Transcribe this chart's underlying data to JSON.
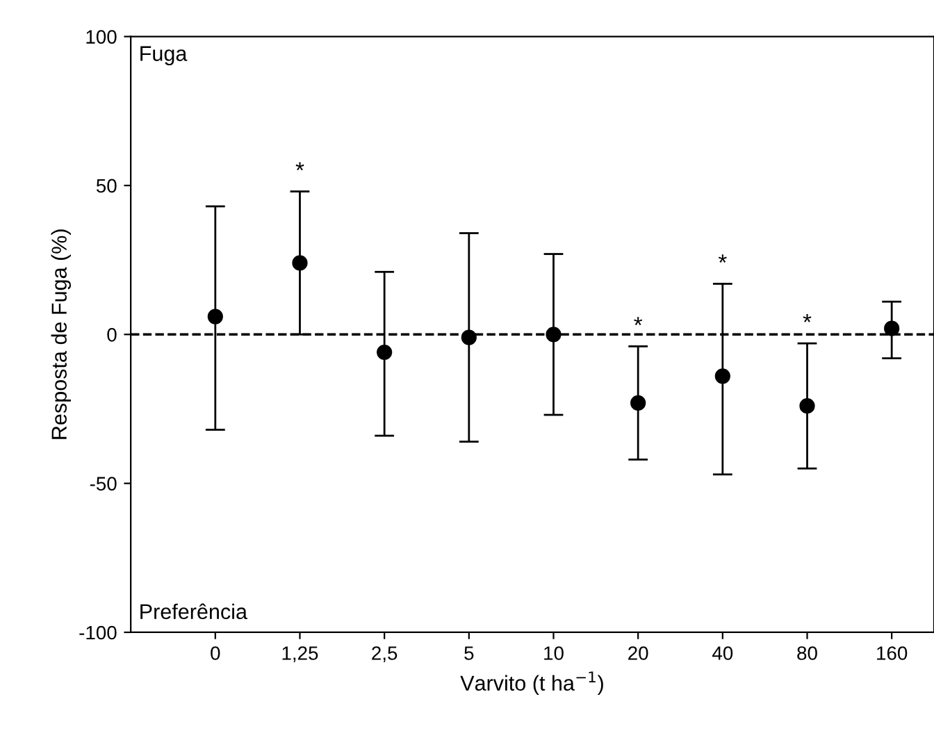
{
  "chart_data": {
    "type": "scatter",
    "xlabel": "Varvito (t ha$^{−1}$)",
    "ylabel": "Resposta de Fuga (%)",
    "categories": [
      "0",
      "1,25",
      "2,5",
      "5",
      "10",
      "20",
      "40",
      "80",
      "160"
    ],
    "values": [
      6,
      24,
      -6,
      -1,
      0,
      -23,
      -14,
      -24,
      2
    ],
    "errors": [
      [
        -32,
        43
      ],
      [
        0,
        48
      ],
      [
        -34,
        21
      ],
      [
        -36,
        34
      ],
      [
        -27,
        27
      ],
      [
        -42,
        -4
      ],
      [
        -47,
        17
      ],
      [
        -45,
        -3
      ],
      [
        -8,
        11
      ]
    ],
    "color": "#000000",
    "marker": "circle",
    "ylim": [
      -100,
      100
    ],
    "yticks": [
      -100,
      -50,
      0,
      50,
      100
    ],
    "ref_lines": [
      {
        "axis": "y",
        "value": 0,
        "line_style": "dashed",
        "color": "#000000"
      }
    ],
    "annotations": [
      {
        "text": "*",
        "x": "1,25",
        "y": 48
      },
      {
        "text": "*",
        "x": "20",
        "y": -4
      },
      {
        "text": "*",
        "x": "40",
        "y": 17
      },
      {
        "text": "*",
        "x": "80",
        "y": -3
      },
      "Fuga",
      "Preferência"
    ],
    "grid": false
  }
}
